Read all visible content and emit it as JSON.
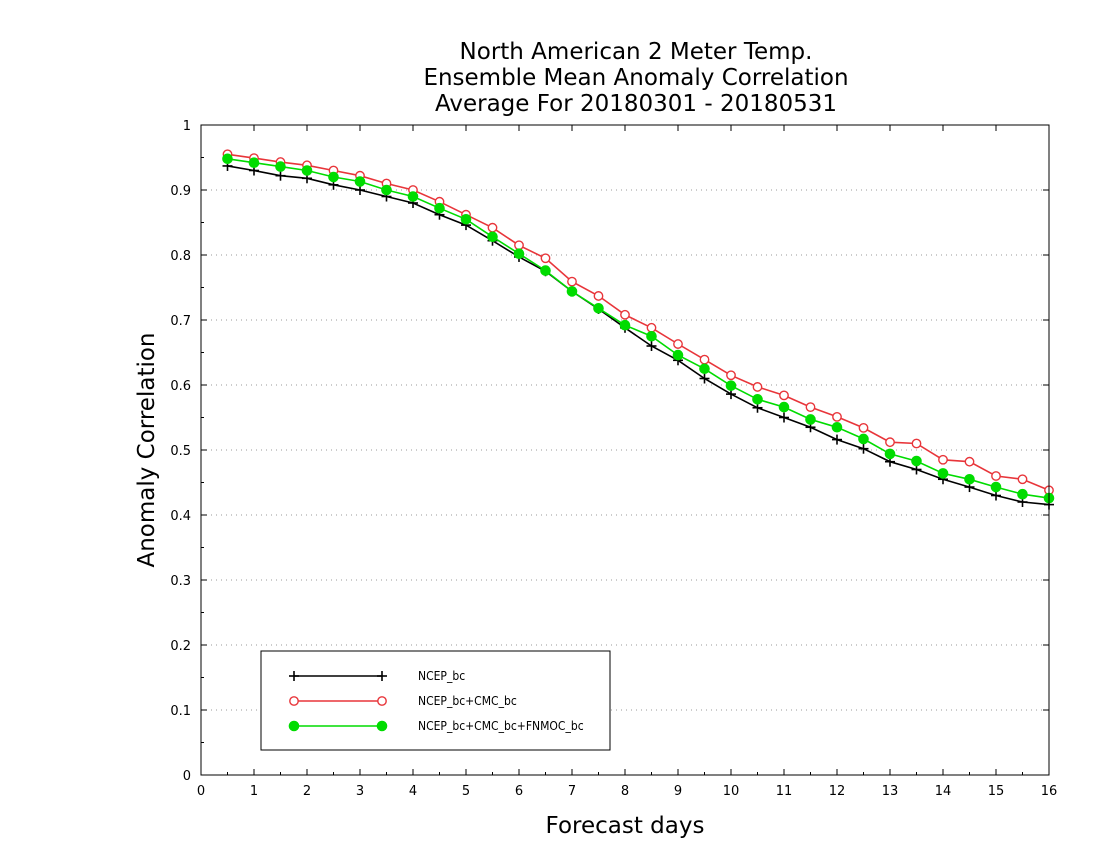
{
  "chart_data": {
    "type": "line",
    "title": [
      "North American 2 Meter Temp.",
      "Ensemble Mean Anomaly Correlation",
      "Average For 20180301 - 20180531"
    ],
    "xlabel": "Forecast days",
    "ylabel": "Anomaly Correlation",
    "xlim": [
      0,
      16
    ],
    "ylim": [
      0,
      1
    ],
    "xticks": [
      0,
      1,
      2,
      3,
      4,
      5,
      6,
      7,
      8,
      9,
      10,
      11,
      12,
      13,
      14,
      15,
      16
    ],
    "xtick_labels": [
      "0",
      "1",
      "2",
      "3",
      "4",
      "5",
      "6",
      "7",
      "8",
      "9",
      "10",
      "11",
      "12",
      "13",
      "14",
      "15",
      "16"
    ],
    "yticks": [
      0,
      0.1,
      0.2,
      0.3,
      0.4,
      0.5,
      0.6,
      0.7,
      0.8,
      0.9,
      1
    ],
    "ytick_labels": [
      "0",
      "0.1",
      "0.2",
      "0.3",
      "0.4",
      "0.5",
      "0.6",
      "0.7",
      "0.8",
      "0.9",
      "1"
    ],
    "grid": true,
    "legend_position": "bottom-left",
    "x": [
      0.5,
      1,
      1.5,
      2,
      2.5,
      3,
      3.5,
      4,
      4.5,
      5,
      5.5,
      6,
      6.5,
      7,
      7.5,
      8,
      8.5,
      9,
      9.5,
      10,
      10.5,
      11,
      11.5,
      12,
      12.5,
      13,
      13.5,
      14,
      14.5,
      15,
      15.5,
      16
    ],
    "series": [
      {
        "name": "NCEP_bc",
        "color": "#000000",
        "marker": "plus",
        "values": [
          0.937,
          0.93,
          0.922,
          0.918,
          0.908,
          0.9,
          0.89,
          0.88,
          0.862,
          0.846,
          0.822,
          0.797,
          0.775,
          0.744,
          0.717,
          0.688,
          0.66,
          0.638,
          0.61,
          0.586,
          0.565,
          0.55,
          0.535,
          0.516,
          0.502,
          0.482,
          0.47,
          0.455,
          0.443,
          0.43,
          0.42,
          0.416
        ]
      },
      {
        "name": "NCEP_bc+CMC_bc",
        "color": "#e8353a",
        "marker": "open-circle",
        "values": [
          0.955,
          0.949,
          0.943,
          0.938,
          0.93,
          0.922,
          0.91,
          0.9,
          0.882,
          0.862,
          0.842,
          0.815,
          0.795,
          0.759,
          0.737,
          0.708,
          0.688,
          0.663,
          0.639,
          0.615,
          0.597,
          0.584,
          0.566,
          0.551,
          0.534,
          0.512,
          0.51,
          0.485,
          0.482,
          0.46,
          0.455,
          0.438
        ]
      },
      {
        "name": "NCEP_bc+CMC_bc+FNMOC_bc",
        "color": "#00dc00",
        "marker": "filled-circle",
        "values": [
          0.948,
          0.942,
          0.936,
          0.93,
          0.92,
          0.913,
          0.9,
          0.89,
          0.872,
          0.855,
          0.828,
          0.802,
          0.776,
          0.744,
          0.718,
          0.692,
          0.675,
          0.646,
          0.625,
          0.599,
          0.578,
          0.566,
          0.547,
          0.535,
          0.517,
          0.494,
          0.483,
          0.464,
          0.455,
          0.443,
          0.432,
          0.426
        ]
      }
    ]
  }
}
